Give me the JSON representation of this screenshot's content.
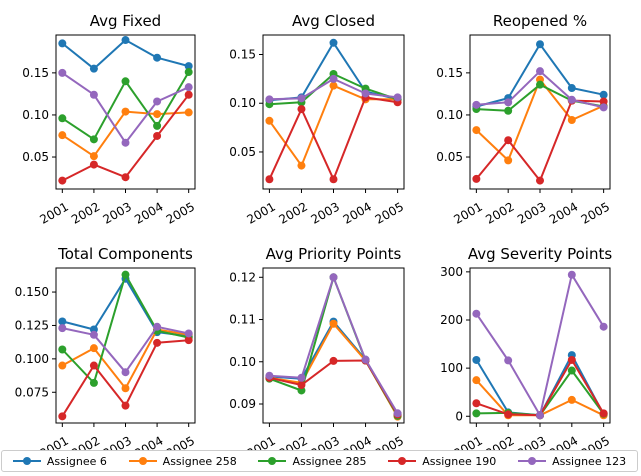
{
  "chart_data": {
    "type": "line",
    "x": [
      "2001",
      "2002",
      "2003",
      "2004",
      "2005"
    ],
    "legend_position": "bottom",
    "colors": {
      "Assignee 6": "#1f77b4",
      "Assignee 258": "#ff7f0e",
      "Assignee 285": "#2ca02c",
      "Assignee 190": "#d62728",
      "Assignee 123": "#9467bd"
    },
    "series_order": [
      "Assignee 6",
      "Assignee 258",
      "Assignee 285",
      "Assignee 190",
      "Assignee 123"
    ],
    "panels": [
      {
        "title": "Avg Fixed",
        "ylim": [
          0.012,
          0.195
        ],
        "yticks": [
          0.05,
          0.1,
          0.15
        ],
        "ytick_labels": [
          "0.05",
          "0.10",
          "0.15"
        ],
        "series": [
          {
            "name": "Assignee 6",
            "values": [
              0.185,
              0.155,
              0.189,
              0.168,
              0.158
            ]
          },
          {
            "name": "Assignee 258",
            "values": [
              0.076,
              0.051,
              0.104,
              0.101,
              0.103
            ]
          },
          {
            "name": "Assignee 285",
            "values": [
              0.096,
              0.071,
              0.14,
              0.087,
              0.151
            ]
          },
          {
            "name": "Assignee 190",
            "values": [
              0.022,
              0.041,
              0.026,
              0.075,
              0.124
            ]
          },
          {
            "name": "Assignee 123",
            "values": [
              0.15,
              0.124,
              0.067,
              0.116,
              0.133
            ]
          }
        ]
      },
      {
        "title": "Avg Closed",
        "ylim": [
          0.012,
          0.17
        ],
        "yticks": [
          0.05,
          0.1,
          0.15
        ],
        "ytick_labels": [
          "0.05",
          "0.10",
          "0.15"
        ],
        "series": [
          {
            "name": "Assignee 6",
            "values": [
              0.103,
              0.106,
              0.162,
              0.112,
              0.104
            ]
          },
          {
            "name": "Assignee 258",
            "values": [
              0.082,
              0.036,
              0.118,
              0.104,
              0.104
            ]
          },
          {
            "name": "Assignee 285",
            "values": [
              0.099,
              0.101,
              0.13,
              0.115,
              0.104
            ]
          },
          {
            "name": "Assignee 190",
            "values": [
              0.022,
              0.094,
              0.022,
              0.106,
              0.101
            ]
          },
          {
            "name": "Assignee 123",
            "values": [
              0.104,
              0.105,
              0.125,
              0.11,
              0.106
            ]
          }
        ]
      },
      {
        "title": "Reopened %",
        "ylim": [
          0.012,
          0.195
        ],
        "yticks": [
          0.05,
          0.1,
          0.15
        ],
        "ytick_labels": [
          "0.05",
          "0.10",
          "0.15"
        ],
        "series": [
          {
            "name": "Assignee 6",
            "values": [
              0.11,
              0.12,
              0.184,
              0.132,
              0.124
            ]
          },
          {
            "name": "Assignee 258",
            "values": [
              0.082,
              0.046,
              0.142,
              0.094,
              0.111
            ]
          },
          {
            "name": "Assignee 285",
            "values": [
              0.107,
              0.105,
              0.136,
              0.117,
              0.11
            ]
          },
          {
            "name": "Assignee 190",
            "values": [
              0.024,
              0.07,
              0.022,
              0.117,
              0.116
            ]
          },
          {
            "name": "Assignee 123",
            "values": [
              0.112,
              0.115,
              0.152,
              0.118,
              0.109
            ]
          }
        ]
      },
      {
        "title": "Total Components",
        "ylim": [
          0.052,
          0.168
        ],
        "yticks": [
          0.075,
          0.1,
          0.125,
          0.15
        ],
        "ytick_labels": [
          "0.075",
          "0.100",
          "0.125",
          "0.150"
        ],
        "series": [
          {
            "name": "Assignee 6",
            "values": [
              0.128,
              0.122,
              0.16,
              0.12,
              0.117
            ]
          },
          {
            "name": "Assignee 258",
            "values": [
              0.095,
              0.108,
              0.078,
              0.122,
              0.118
            ]
          },
          {
            "name": "Assignee 285",
            "values": [
              0.107,
              0.082,
              0.163,
              0.121,
              0.116
            ]
          },
          {
            "name": "Assignee 190",
            "values": [
              0.057,
              0.095,
              0.065,
              0.112,
              0.114
            ]
          },
          {
            "name": "Assignee 123",
            "values": [
              0.123,
              0.118,
              0.09,
              0.124,
              0.119
            ]
          }
        ]
      },
      {
        "title": "Avg Priority Points",
        "ylim": [
          0.0855,
          0.1222
        ],
        "yticks": [
          0.09,
          0.1,
          0.11,
          0.12
        ],
        "ytick_labels": [
          "0.09",
          "0.10",
          "0.11",
          "0.12"
        ],
        "series": [
          {
            "name": "Assignee 6",
            "values": [
              0.0965,
              0.096,
              0.1095,
              0.1005,
              0.0875
            ]
          },
          {
            "name": "Assignee 258",
            "values": [
              0.0962,
              0.095,
              0.109,
              0.1003,
              0.087
            ]
          },
          {
            "name": "Assignee 285",
            "values": [
              0.096,
              0.0932,
              0.12,
              0.1003,
              0.0872
            ]
          },
          {
            "name": "Assignee 190",
            "values": [
              0.0962,
              0.0945,
              0.1002,
              0.1003,
              0.0875
            ]
          },
          {
            "name": "Assignee 123",
            "values": [
              0.0967,
              0.0962,
              0.12,
              0.1005,
              0.0878
            ]
          }
        ]
      },
      {
        "title": "Avg Severity Points",
        "ylim": [
          -14,
          308
        ],
        "yticks": [
          0,
          100,
          200,
          300
        ],
        "ytick_labels": [
          "0",
          "100",
          "200",
          "300"
        ],
        "series": [
          {
            "name": "Assignee 6",
            "values": [
              117,
              8,
              2,
              127,
              4
            ]
          },
          {
            "name": "Assignee 258",
            "values": [
              75,
              2,
              2,
              34,
              2
            ]
          },
          {
            "name": "Assignee 285",
            "values": [
              6,
              7,
              2,
              95,
              5
            ]
          },
          {
            "name": "Assignee 190",
            "values": [
              27,
              4,
              2,
              117,
              6
            ]
          },
          {
            "name": "Assignee 123",
            "values": [
              213,
              116,
              2,
              294,
              186
            ]
          }
        ]
      }
    ]
  },
  "legend": {
    "entries": [
      {
        "label": "Assignee 6",
        "color": "#1f77b4"
      },
      {
        "label": "Assignee 258",
        "color": "#ff7f0e"
      },
      {
        "label": "Assignee 285",
        "color": "#2ca02c"
      },
      {
        "label": "Assignee 190",
        "color": "#d62728"
      },
      {
        "label": "Assignee 123",
        "color": "#9467bd"
      }
    ]
  }
}
